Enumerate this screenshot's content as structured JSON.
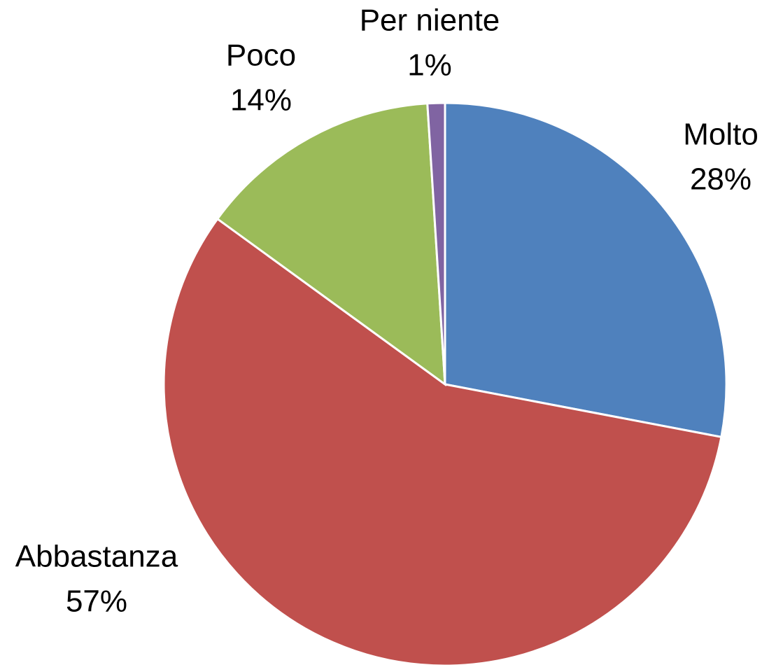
{
  "chart_data": {
    "type": "pie",
    "categories": [
      "Molto",
      "Abbastanza",
      "Poco",
      "Per niente"
    ],
    "values": [
      28,
      57,
      14,
      1
    ],
    "value_labels": [
      "28%",
      "57%",
      "14%",
      "1%"
    ],
    "colors": [
      "#4f81bd",
      "#c0504d",
      "#9bbb59",
      "#8064a2"
    ]
  }
}
